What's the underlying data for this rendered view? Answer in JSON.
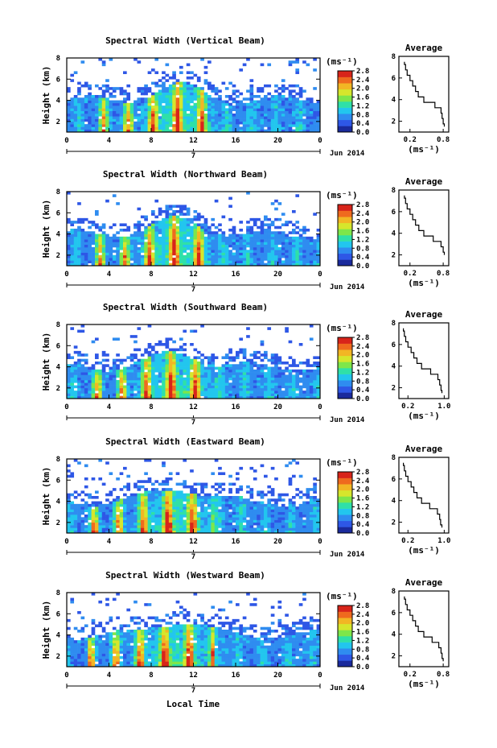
{
  "xlabel_bottom": "Local Time",
  "date_label": "7",
  "date_right": "Jun 2014",
  "colorbar_unit": "(ms⁻¹)",
  "colorbar_ticks": [
    "2.8",
    "2.4",
    "2.0",
    "1.6",
    "1.2",
    "0.8",
    "0.4",
    "0.0"
  ],
  "avg_xlabel": "(ms⁻¹)",
  "avg_title": "Average",
  "colors": {
    "scale": [
      "#1a2a9c",
      "#2e57e6",
      "#2f8cf0",
      "#22c6ee",
      "#2fe0a8",
      "#7ee64a",
      "#d6e62c",
      "#f2b624",
      "#ef6a1e",
      "#d8241a"
    ]
  },
  "chart_data": [
    {
      "type": "heatmap",
      "title": "Spectral Width (Vertical Beam)",
      "ylabel": "Height (km)",
      "xlim": [
        0,
        24
      ],
      "ylim": [
        1,
        8
      ],
      "x_ticks": [
        "0",
        "4",
        "8",
        "12",
        "16",
        "20",
        "0"
      ],
      "y_ticks": [
        "2",
        "4",
        "6",
        "8"
      ],
      "colorbar_range": [
        0.0,
        2.8
      ],
      "average": {
        "title": "Average",
        "xlabel": "(ms⁻¹)",
        "x_ticks": [
          "0.2",
          "0.8"
        ],
        "y_ticks": [
          "2",
          "4",
          "6",
          "8"
        ],
        "heights": [
          1.5,
          2,
          2.5,
          3,
          3.5,
          4,
          4.5,
          5,
          5.5,
          6,
          6.5,
          7,
          7.5
        ],
        "values": [
          0.82,
          0.8,
          0.78,
          0.76,
          0.65,
          0.45,
          0.35,
          0.3,
          0.25,
          0.2,
          0.15,
          0.12,
          0.1
        ]
      }
    },
    {
      "type": "heatmap",
      "title": "Spectral Width (Northward Beam)",
      "ylabel": "Height (km)",
      "xlim": [
        0,
        24
      ],
      "ylim": [
        1,
        8
      ],
      "x_ticks": [
        "0",
        "4",
        "8",
        "12",
        "16",
        "20",
        "0"
      ],
      "y_ticks": [
        "2",
        "4",
        "6",
        "8"
      ],
      "colorbar_range": [
        0.0,
        2.8
      ],
      "average": {
        "title": "Average",
        "xlabel": "(ms⁻¹)",
        "x_ticks": [
          "0.2",
          "0.8"
        ],
        "y_ticks": [
          "2",
          "4",
          "6",
          "8"
        ],
        "heights": [
          2,
          2.5,
          3,
          3.5,
          4,
          4.5,
          5,
          5.5,
          6,
          6.5,
          7,
          7.5
        ],
        "values": [
          0.82,
          0.8,
          0.76,
          0.62,
          0.45,
          0.36,
          0.3,
          0.25,
          0.2,
          0.15,
          0.12,
          0.1
        ]
      }
    },
    {
      "type": "heatmap",
      "title": "Spectral Width (Southward Beam)",
      "ylabel": "Height (km)",
      "xlim": [
        0,
        24
      ],
      "ylim": [
        1,
        8
      ],
      "x_ticks": [
        "0",
        "4",
        "8",
        "12",
        "16",
        "20",
        "0"
      ],
      "y_ticks": [
        "2",
        "4",
        "6",
        "8"
      ],
      "colorbar_range": [
        0.0,
        2.8
      ],
      "average": {
        "title": "Average",
        "xlabel": "(ms⁻¹)",
        "x_ticks": [
          "0.2",
          "1.0"
        ],
        "y_ticks": [
          "2",
          "4",
          "6",
          "8"
        ],
        "heights": [
          1.5,
          2,
          2.5,
          3,
          3.5,
          4,
          4.5,
          5,
          5.5,
          6,
          6.5,
          7,
          7.5
        ],
        "values": [
          0.95,
          0.93,
          0.9,
          0.86,
          0.7,
          0.5,
          0.4,
          0.33,
          0.27,
          0.2,
          0.15,
          0.12,
          0.1
        ]
      }
    },
    {
      "type": "heatmap",
      "title": "Spectral Width (Eastward Beam)",
      "ylabel": "Height (km)",
      "xlim": [
        0,
        24
      ],
      "ylim": [
        1,
        8
      ],
      "x_ticks": [
        "0",
        "4",
        "8",
        "12",
        "16",
        "20",
        "0"
      ],
      "y_ticks": [
        "2",
        "4",
        "6",
        "8"
      ],
      "colorbar_range": [
        0.0,
        2.8
      ],
      "average": {
        "title": "Average",
        "xlabel": "(ms⁻¹)",
        "x_ticks": [
          "0.2",
          "1.0"
        ],
        "y_ticks": [
          "2",
          "4",
          "6",
          "8"
        ],
        "heights": [
          1.5,
          2,
          2.5,
          3,
          3.5,
          4,
          4.5,
          5,
          5.5,
          6,
          6.5,
          7,
          7.5
        ],
        "values": [
          0.95,
          0.92,
          0.9,
          0.85,
          0.68,
          0.5,
          0.4,
          0.33,
          0.27,
          0.2,
          0.15,
          0.12,
          0.1
        ]
      }
    },
    {
      "type": "heatmap",
      "title": "Spectral Width (Westward Beam)",
      "ylabel": "Height (km)",
      "xlim": [
        0,
        24
      ],
      "ylim": [
        1,
        8
      ],
      "x_ticks": [
        "0",
        "4",
        "8",
        "12",
        "16",
        "20",
        "0"
      ],
      "y_ticks": [
        "2",
        "4",
        "6",
        "8"
      ],
      "colorbar_range": [
        0.0,
        2.8
      ],
      "average": {
        "title": "Average",
        "xlabel": "(ms⁻¹)",
        "x_ticks": [
          "0.2",
          "0.8"
        ],
        "y_ticks": [
          "2",
          "4",
          "6",
          "8"
        ],
        "heights": [
          1.5,
          2,
          2.5,
          3,
          3.5,
          4,
          4.5,
          5,
          5.5,
          6,
          6.5,
          7,
          7.5
        ],
        "values": [
          0.8,
          0.78,
          0.76,
          0.72,
          0.6,
          0.45,
          0.35,
          0.3,
          0.25,
          0.2,
          0.15,
          0.12,
          0.1
        ]
      }
    }
  ]
}
